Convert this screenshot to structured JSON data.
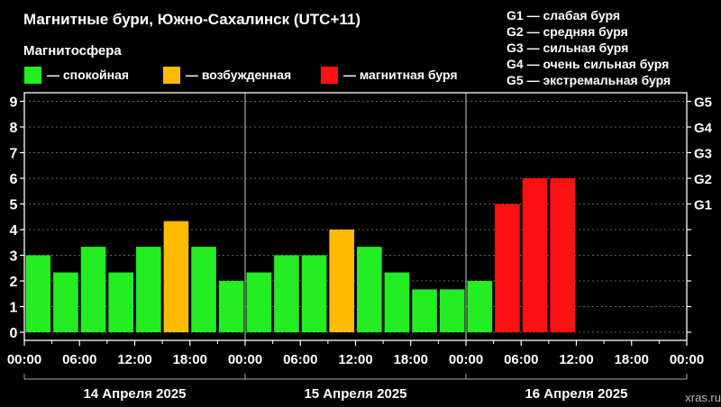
{
  "header": {
    "title": "Магнитные бури, Южно-Сахалинск (UTC+11)",
    "legend_title": "Магнитосфера",
    "legend": [
      {
        "label": "— спокойная",
        "color": "#22ee22"
      },
      {
        "label": "— возбужденная",
        "color": "#ffbb00"
      },
      {
        "label": "— магнитная буря",
        "color": "#ff1111"
      }
    ],
    "storm_scale": [
      "G1 — слабая буря",
      "G2 — средняя буря",
      "G3 — сильная буря",
      "G4 — очень сильная буря",
      "G5 — экстремальная буря"
    ]
  },
  "footer": {
    "watermark": "xras.ru"
  },
  "chart_data": {
    "type": "bar",
    "title": "Магнитные бури, Южно-Сахалинск (UTC+11)",
    "ylim": [
      0,
      9
    ],
    "y_ticks": [
      "0",
      "1",
      "2",
      "3",
      "4",
      "5",
      "6",
      "7",
      "8",
      "9"
    ],
    "right_ticks": [
      {
        "value": 5,
        "label": "G1"
      },
      {
        "value": 6,
        "label": "G2"
      },
      {
        "value": 7,
        "label": "G3"
      },
      {
        "value": 8,
        "label": "G4"
      },
      {
        "value": 9,
        "label": "G5"
      }
    ],
    "x_tick_labels": [
      "00:00",
      "06:00",
      "12:00",
      "18:00",
      "00:00",
      "06:00",
      "12:00",
      "18:00",
      "00:00",
      "06:00",
      "12:00",
      "18:00",
      "00:00"
    ],
    "days": [
      "14 Апреля 2025",
      "15 Апреля 2025",
      "16 Апреля 2025"
    ],
    "interval_hours": 3,
    "colors": {
      "quiet": "#22ee22",
      "active": "#ffbb00",
      "storm": "#ff1111"
    },
    "values": [
      3.0,
      2.33,
      3.33,
      2.33,
      3.33,
      4.33,
      3.33,
      2.0,
      2.33,
      3.0,
      3.0,
      4.0,
      3.33,
      2.33,
      1.67,
      1.67,
      2.0,
      5.0,
      6.0,
      6.0
    ],
    "grid": true
  }
}
